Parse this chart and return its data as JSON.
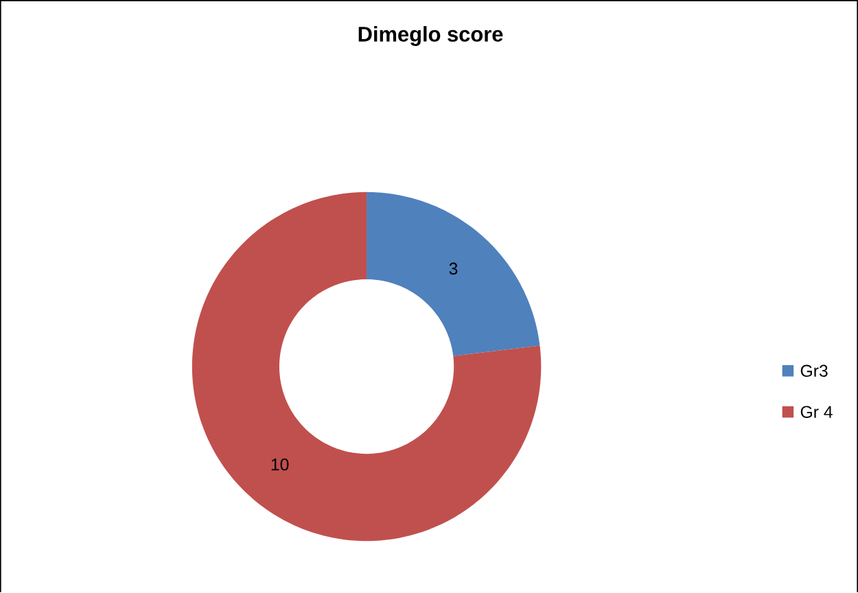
{
  "chart_data": {
    "type": "donut",
    "title": "Dimeglo score",
    "categories": [
      "Gr3",
      "Gr 4"
    ],
    "values": [
      3,
      10
    ],
    "colors": [
      "#4f81bd",
      "#c0504d"
    ],
    "data_labels": true,
    "legend": "right"
  }
}
